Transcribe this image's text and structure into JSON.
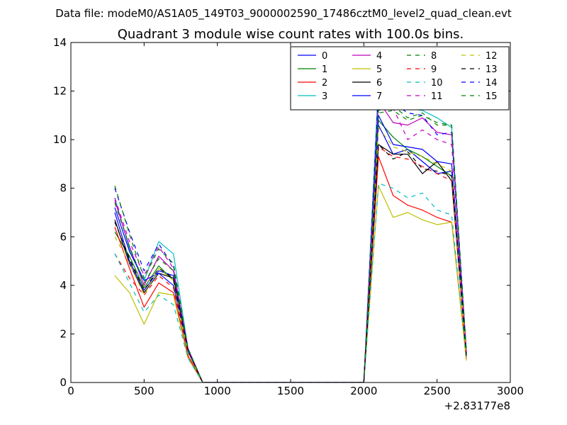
{
  "suptitle": "Data file: modeM0/AS1A05_149T03_9000002590_17486cztM0_level2_quad_clean.evt",
  "chart_data": {
    "type": "line",
    "title": "Quadrant 3 module wise count rates with 100.0s bins.",
    "xlabel": "",
    "ylabel": "",
    "x_offset_label": "+2.83177e8",
    "xlim": [
      0,
      3000
    ],
    "ylim": [
      0,
      14
    ],
    "xticks": [
      0,
      500,
      1000,
      1500,
      2000,
      2500,
      3000
    ],
    "xtick_labels": [
      "0",
      "500",
      "1000",
      "1500",
      "2000",
      "2500",
      "3000"
    ],
    "yticks": [
      0,
      2,
      4,
      6,
      8,
      10,
      12,
      14
    ],
    "ytick_labels": [
      "0",
      "2",
      "4",
      "6",
      "8",
      "10",
      "12",
      "14"
    ],
    "grid": false,
    "legend_position": "top-right",
    "x": [
      300,
      400,
      500,
      600,
      700,
      800,
      900,
      1000,
      1100,
      1200,
      1300,
      1400,
      1500,
      1600,
      1700,
      1800,
      1900,
      2000,
      2100,
      2200,
      2300,
      2400,
      2500,
      2600,
      2700
    ],
    "series": [
      {
        "name": "0",
        "color": "#0000ff",
        "dash": false,
        "values": [
          7.0,
          5.0,
          3.8,
          4.6,
          4.4,
          1.3,
          0,
          0,
          0,
          0,
          0,
          0,
          0,
          0,
          0,
          0,
          0,
          0,
          10.6,
          9.4,
          9.6,
          9.1,
          8.6,
          8.7,
          1.1
        ]
      },
      {
        "name": "1",
        "color": "#008000",
        "dash": false,
        "values": [
          6.2,
          5.2,
          3.9,
          4.8,
          4.2,
          1.3,
          0,
          0,
          0,
          0,
          0,
          0,
          0,
          0,
          0,
          0,
          0,
          0,
          10.8,
          10.1,
          9.6,
          9.3,
          8.9,
          8.5,
          1.2
        ]
      },
      {
        "name": "2",
        "color": "#ff0000",
        "dash": false,
        "values": [
          6.4,
          4.7,
          3.1,
          4.1,
          3.7,
          1.1,
          0,
          0,
          0,
          0,
          0,
          0,
          0,
          0,
          0,
          0,
          0,
          0,
          9.3,
          7.7,
          7.3,
          7.1,
          6.8,
          6.6,
          1.0
        ]
      },
      {
        "name": "3",
        "color": "#00bfbf",
        "dash": false,
        "values": [
          7.6,
          5.5,
          4.2,
          5.8,
          5.3,
          1.4,
          0,
          0,
          0,
          0,
          0,
          0,
          0,
          0,
          0,
          0,
          0,
          0,
          12.4,
          11.5,
          11.3,
          11.2,
          10.9,
          10.5,
          1.3
        ]
      },
      {
        "name": "4",
        "color": "#bf00bf",
        "dash": false,
        "values": [
          7.5,
          5.6,
          4.0,
          5.2,
          4.6,
          1.3,
          0,
          0,
          0,
          0,
          0,
          0,
          0,
          0,
          0,
          0,
          0,
          0,
          11.6,
          10.7,
          10.6,
          10.9,
          10.3,
          10.2,
          1.2
        ]
      },
      {
        "name": "5",
        "color": "#bfbf00",
        "dash": false,
        "values": [
          4.4,
          3.7,
          2.4,
          3.7,
          3.6,
          1.0,
          0,
          0,
          0,
          0,
          0,
          0,
          0,
          0,
          0,
          0,
          0,
          0,
          8.1,
          6.8,
          7.0,
          6.7,
          6.5,
          6.6,
          0.9
        ]
      },
      {
        "name": "6",
        "color": "#000000",
        "dash": false,
        "values": [
          6.7,
          4.9,
          3.7,
          4.5,
          4.3,
          1.3,
          0,
          0,
          0,
          0,
          0,
          0,
          0,
          0,
          0,
          0,
          0,
          0,
          9.8,
          9.4,
          9.4,
          8.6,
          9.1,
          8.3,
          1.1
        ]
      },
      {
        "name": "7",
        "color": "#0000ff",
        "dash": false,
        "values": [
          7.2,
          5.4,
          4.2,
          4.5,
          4.0,
          1.3,
          0,
          0,
          0,
          0,
          0,
          0,
          0,
          0,
          0,
          0,
          0,
          0,
          11.0,
          9.8,
          9.7,
          9.6,
          9.1,
          9.0,
          1.2
        ]
      },
      {
        "name": "8",
        "color": "#008000",
        "dash": true,
        "values": [
          7.4,
          5.6,
          4.1,
          5.1,
          4.6,
          1.4,
          0,
          0,
          0,
          0,
          0,
          0,
          0,
          0,
          0,
          0,
          0,
          0,
          11.2,
          11.4,
          10.9,
          11.1,
          10.6,
          10.6,
          1.3
        ]
      },
      {
        "name": "9",
        "color": "#ff0000",
        "dash": true,
        "values": [
          5.3,
          4.3,
          3.6,
          4.4,
          3.9,
          1.1,
          0,
          0,
          0,
          0,
          0,
          0,
          0,
          0,
          0,
          0,
          0,
          0,
          9.7,
          9.3,
          9.2,
          8.9,
          8.6,
          8.3,
          1.0
        ]
      },
      {
        "name": "10",
        "color": "#00bfbf",
        "dash": true,
        "values": [
          5.3,
          4.1,
          2.9,
          3.6,
          3.2,
          1.0,
          0,
          0,
          0,
          0,
          0,
          0,
          0,
          0,
          0,
          0,
          0,
          0,
          8.2,
          8.0,
          7.6,
          7.8,
          7.1,
          6.9,
          1.0
        ]
      },
      {
        "name": "11",
        "color": "#bf00bf",
        "dash": true,
        "values": [
          7.6,
          5.8,
          4.4,
          5.6,
          4.7,
          1.4,
          0,
          0,
          0,
          0,
          0,
          0,
          0,
          0,
          0,
          0,
          0,
          0,
          11.7,
          11.3,
          10.0,
          10.4,
          10.0,
          9.8,
          1.3
        ]
      },
      {
        "name": "12",
        "color": "#bfbf00",
        "dash": true,
        "values": [
          6.0,
          4.9,
          3.6,
          4.7,
          4.2,
          1.2,
          0,
          0,
          0,
          0,
          0,
          0,
          0,
          0,
          0,
          0,
          0,
          0,
          10.5,
          9.7,
          9.5,
          9.3,
          9.0,
          8.7,
          1.1
        ]
      },
      {
        "name": "13",
        "color": "#000000",
        "dash": true,
        "values": [
          6.6,
          5.1,
          3.8,
          4.7,
          4.3,
          1.3,
          0,
          0,
          0,
          0,
          0,
          0,
          0,
          0,
          0,
          0,
          0,
          0,
          9.8,
          9.2,
          9.5,
          8.8,
          8.7,
          8.5,
          1.1
        ]
      },
      {
        "name": "14",
        "color": "#0000ff",
        "dash": true,
        "values": [
          8.0,
          6.2,
          4.6,
          5.7,
          4.8,
          1.4,
          0,
          0,
          0,
          0,
          0,
          0,
          0,
          0,
          0,
          0,
          0,
          0,
          12.0,
          11.5,
          11.1,
          11.0,
          10.2,
          10.3,
          1.3
        ]
      },
      {
        "name": "15",
        "color": "#008000",
        "dash": true,
        "values": [
          8.1,
          6.1,
          4.3,
          5.5,
          4.9,
          1.4,
          0,
          0,
          0,
          0,
          0,
          0,
          0,
          0,
          0,
          0,
          0,
          0,
          11.1,
          11.2,
          10.8,
          11.0,
          10.7,
          10.6,
          1.3
        ]
      }
    ]
  }
}
